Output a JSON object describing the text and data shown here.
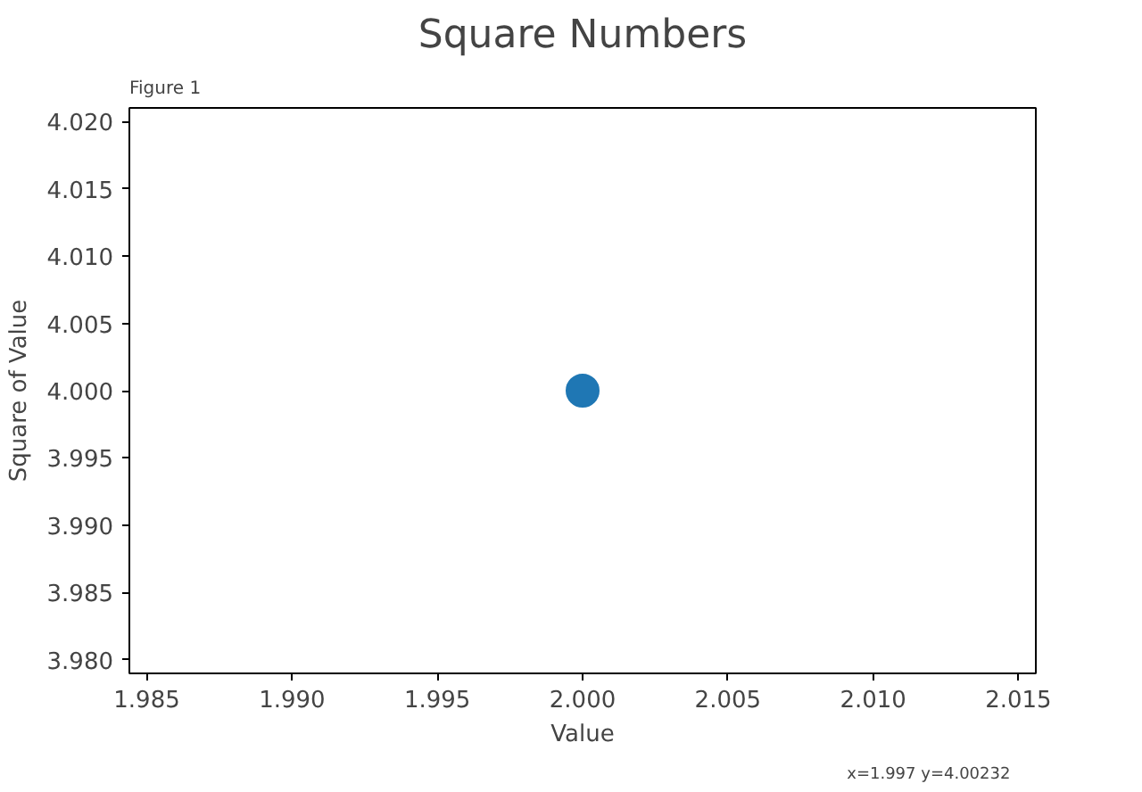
{
  "chart_data": {
    "type": "scatter",
    "title": "Square Numbers",
    "xlabel": "Value",
    "ylabel": "Square of Value",
    "x": [
      2
    ],
    "values": [
      4
    ],
    "color": "#1f77b4",
    "marker": "circle",
    "xlim": [
      1.9844,
      2.0156
    ],
    "xticks": [
      {
        "value": 1.985,
        "label": "1.985"
      },
      {
        "value": 1.99,
        "label": "1.990"
      },
      {
        "value": 1.995,
        "label": "1.995"
      },
      {
        "value": 2.0,
        "label": "2.000"
      },
      {
        "value": 2.005,
        "label": "2.005"
      },
      {
        "value": 2.01,
        "label": "2.010"
      },
      {
        "value": 2.015,
        "label": "2.015"
      }
    ],
    "ylim": [
      3.979,
      4.021
    ],
    "yticks": [
      {
        "value": 3.98,
        "label": "3.980"
      },
      {
        "value": 3.985,
        "label": "3.985"
      },
      {
        "value": 3.99,
        "label": "3.990"
      },
      {
        "value": 3.995,
        "label": "3.995"
      },
      {
        "value": 4.0,
        "label": "4.000"
      },
      {
        "value": 4.005,
        "label": "4.005"
      },
      {
        "value": 4.01,
        "label": "4.010"
      },
      {
        "value": 4.015,
        "label": "4.015"
      },
      {
        "value": 4.02,
        "label": "4.020"
      }
    ],
    "grid": false,
    "annotations": [
      "Figure 1",
      "x=1.997      y=4.00232"
    ]
  }
}
